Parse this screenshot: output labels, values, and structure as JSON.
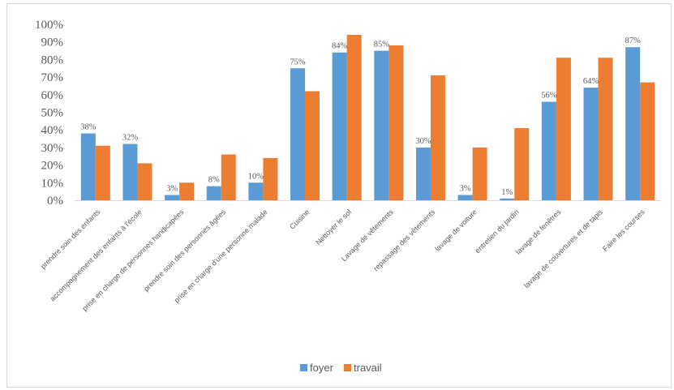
{
  "chart_data": {
    "type": "bar",
    "title": "",
    "xlabel": "",
    "ylabel": "",
    "ylim": [
      0,
      100
    ],
    "yticks": [
      "0%",
      "10%",
      "20%",
      "30%",
      "40%",
      "50%",
      "60%",
      "70%",
      "80%",
      "90%",
      "100%"
    ],
    "grid": false,
    "legend_position": "bottom",
    "categories": [
      "prendre soin des enfants",
      "accompagnement des enfants à l'école",
      "prise en charge de personnes handicapées",
      "prendre soin des personnes âgées",
      "prise en charge d'une personne malade",
      "Cuisine",
      "Nettoyer le sol",
      "Lavage de vêtements",
      "repassage des vêtements",
      "lavage de voiture",
      "entretien du jardin",
      "lavage de fenêtres",
      "lavage de couvertures et de tapis",
      "Faire les courses"
    ],
    "series": [
      {
        "name": "foyer",
        "color": "#5b9bd5",
        "values": [
          38,
          32,
          3,
          8,
          10,
          75,
          84,
          85,
          30,
          3,
          1,
          56,
          64,
          87
        ],
        "labels": [
          "38%",
          "32%",
          "3%",
          "8%",
          "10%",
          "75%",
          "84%",
          "85%",
          "30%",
          "3%",
          "1%",
          "56%",
          "64%",
          "87%"
        ]
      },
      {
        "name": "travail",
        "color": "#ed7d31",
        "values": [
          31,
          21,
          10,
          26,
          24,
          62,
          94,
          88,
          71,
          30,
          41,
          81,
          81,
          67
        ]
      }
    ]
  }
}
